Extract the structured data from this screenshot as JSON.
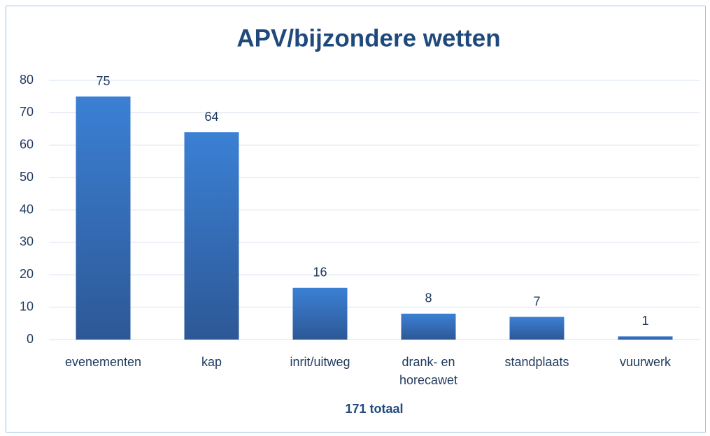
{
  "chart_data": {
    "type": "bar",
    "title": "APV/bijzondere wetten",
    "x_label": "171 totaal",
    "categories": [
      "evenementen",
      "kap",
      "inrit/uitweg",
      "drank- en horecawet",
      "standplaats",
      "vuurwerk"
    ],
    "values": [
      75,
      64,
      16,
      8,
      7,
      1
    ],
    "color": "#3a7fd0",
    "ylim": [
      0,
      80
    ],
    "yticks": [
      0,
      10,
      20,
      30,
      40,
      50,
      60,
      70,
      80
    ],
    "grid": true
  }
}
